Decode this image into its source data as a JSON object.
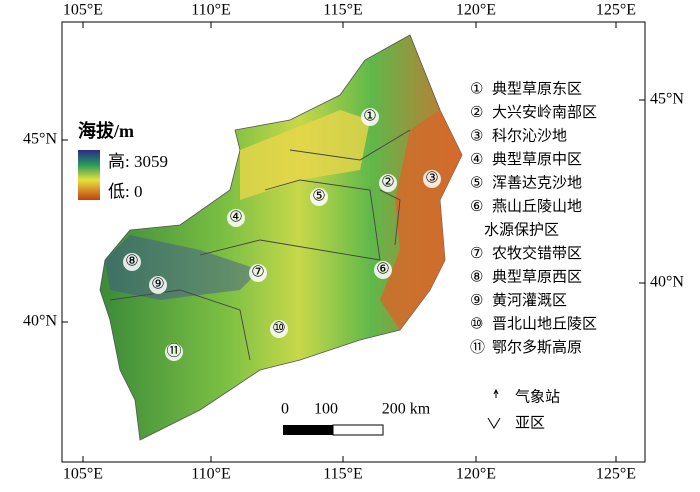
{
  "axes": {
    "top": [
      "105°E",
      "110°E",
      "115°E",
      "120°E",
      "125°E"
    ],
    "bottom": [
      "105°E",
      "110°E",
      "115°E",
      "120°E",
      "125°E"
    ],
    "left": [
      "45°N",
      "40°N"
    ],
    "right": [
      "45°N",
      "40°N"
    ]
  },
  "elevation_legend": {
    "title": "海拔/m",
    "high": "高: 3059",
    "low": "低: 0"
  },
  "regions": [
    {
      "num": "①",
      "name": [
        "典型草原东区"
      ]
    },
    {
      "num": "②",
      "name": [
        "大兴安岭南部区"
      ]
    },
    {
      "num": "③",
      "name": [
        "科尔沁沙地"
      ]
    },
    {
      "num": "④",
      "name": [
        "典型草原中区"
      ]
    },
    {
      "num": "⑤",
      "name": [
        "浑善达克沙地"
      ]
    },
    {
      "num": "⑥",
      "name": [
        "燕山丘陵山地",
        "水源保护区"
      ]
    },
    {
      "num": "⑦",
      "name": [
        "农牧交错带区"
      ]
    },
    {
      "num": "⑧",
      "name": [
        "典型草原西区"
      ]
    },
    {
      "num": "⑨",
      "name": [
        "黄河灌溉区"
      ]
    },
    {
      "num": "⑩",
      "name": [
        "晋北山地丘陵区"
      ]
    },
    {
      "num": "⑪",
      "name": [
        "鄂尔多斯高原"
      ]
    }
  ],
  "scale_bar": [
    "0",
    "100",
    "200 km"
  ],
  "symbols": {
    "station": "气象站",
    "subregion": "亚区"
  }
}
